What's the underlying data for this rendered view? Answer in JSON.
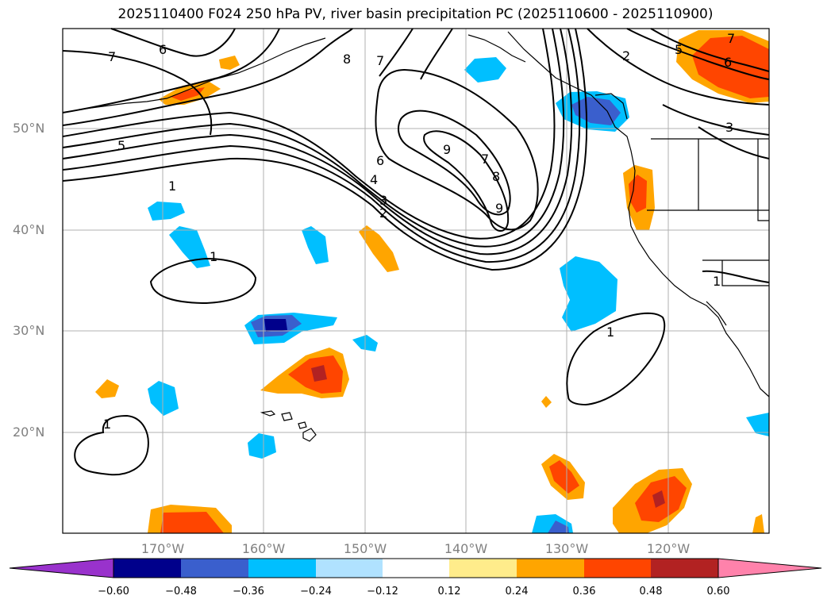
{
  "title": "2025110400 F024 250 hPa PV, river basin precipitation PC (2025110600 - 2025110900)",
  "lat_labels": [
    "50°N",
    "40°N",
    "30°N",
    "20°N"
  ],
  "lon_labels": [
    "170°W",
    "160°W",
    "150°W",
    "140°W",
    "130°W",
    "120°W"
  ],
  "colorbar": {
    "ticks": [
      "−0.60",
      "−0.48",
      "−0.36",
      "−0.24",
      "−0.12",
      "0.12",
      "0.24",
      "0.36",
      "0.48",
      "0.60"
    ],
    "colors": [
      "#9932cc",
      "#00008b",
      "#3a5fcd",
      "#00bfff",
      "#b0e2ff",
      "#ffffff",
      "#ffec8b",
      "#ffa500",
      "#ff4500",
      "#b22222",
      "#ff82ab"
    ]
  },
  "contour_labels": [
    "7",
    "6",
    "8",
    "7",
    "5",
    "1",
    "6",
    "4",
    "3",
    "2",
    "9",
    "7",
    "8",
    "9",
    "1",
    "1",
    "1",
    "2",
    "5",
    "7",
    "6",
    "3",
    "1"
  ]
}
